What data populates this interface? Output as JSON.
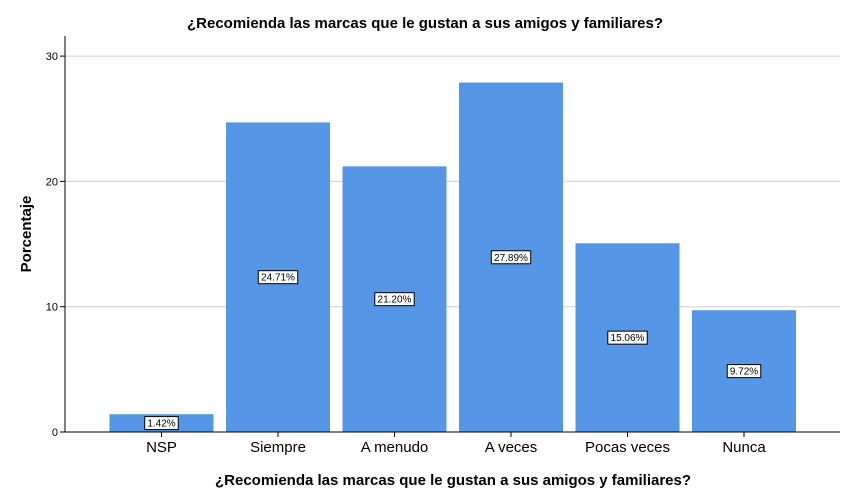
{
  "chart_data": {
    "type": "bar",
    "title": "¿Recomienda las marcas que le gustan a sus amigos y familiares?",
    "xlabel": "¿Recomienda las marcas que le gustan a sus amigos y familiares?",
    "ylabel": "Porcentaje",
    "categories": [
      "NSP",
      "Siempre",
      "A menudo",
      "A veces",
      "Pocas veces",
      "Nunca"
    ],
    "values": [
      1.42,
      24.71,
      21.2,
      27.89,
      15.06,
      9.72
    ],
    "data_labels": [
      "1.42%",
      "24.71%",
      "21.20%",
      "27.89%",
      "15.06%",
      "9.72%"
    ],
    "ylim": [
      0,
      30
    ],
    "yticks": [
      0,
      10,
      20,
      30
    ],
    "grid": true,
    "bar_color": "#5596e6"
  }
}
